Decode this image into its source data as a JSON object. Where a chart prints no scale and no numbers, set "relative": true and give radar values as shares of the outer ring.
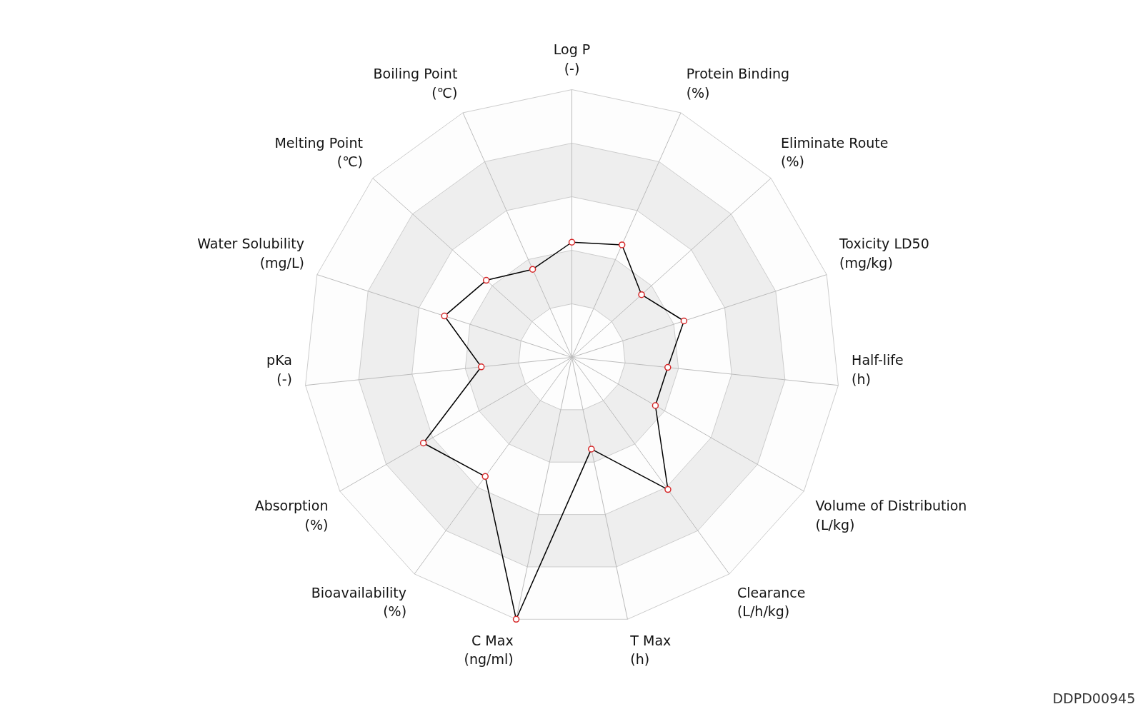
{
  "chart_data": {
    "type": "radar",
    "relative": true,
    "grid": true,
    "marker": "circle",
    "line_style": "solid",
    "categories": [
      "Log P\n(-)",
      "Protein Binding\n(%)",
      "Eliminate Route\n(%)",
      "Toxicity LD50\n(mg/kg)",
      "Half-life\n(h)",
      "Volume of Distribution\n(L/kg)",
      "Clearance\n(L/h/kg)",
      "T Max\n(h)",
      "C Max\n(ng/ml)",
      "Bioavailability\n(%)",
      "Absorption\n(%)",
      "pKa\n(-)",
      "Water Solubility\n(mg/L)",
      "Melting Point\n(℃)",
      "Boiling Point\n(℃)"
    ],
    "series": [
      {
        "color": "#000000",
        "colors": [
          "#d62728",
          "#d62728",
          "#d62728",
          "#d62728",
          "#d62728",
          "#d62728",
          "#d62728",
          "#d62728",
          "#d62728",
          "#d62728",
          "#d62728",
          "#d62728",
          "#d62728",
          "#d62728",
          "#d62728"
        ],
        "values": [
          0.43,
          0.46,
          0.35,
          0.44,
          0.36,
          0.36,
          0.61,
          0.35,
          1.0,
          0.55,
          0.64,
          0.34,
          0.5,
          0.43,
          0.36
        ]
      }
    ],
    "annotations": [
      "DDPD00945"
    ]
  }
}
